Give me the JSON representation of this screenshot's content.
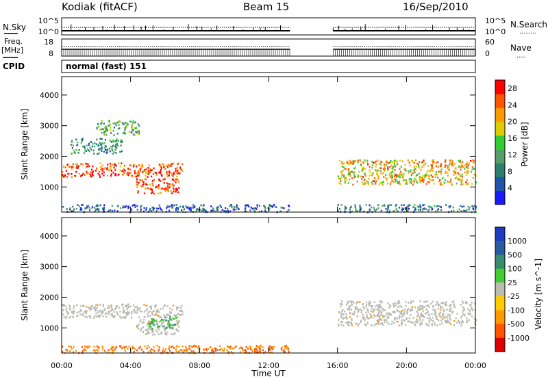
{
  "header": {
    "site": "Kodiak (fitACF)",
    "beam": "Beam 15",
    "date": "16/Sep/2010"
  },
  "noise_panel": {
    "left_label": "N.Sky",
    "left_ticks": [
      "10^5",
      "10^0"
    ],
    "right_label": "N.Search",
    "right_ticks": [
      "10^5",
      "10^0"
    ],
    "right_legend": "........"
  },
  "freq_panel": {
    "left_label_1": "Freq.",
    "left_label_2": "[MHz]",
    "left_ticks": [
      "18",
      "8"
    ],
    "right_label": "Nave",
    "right_ticks": [
      "60",
      "0"
    ],
    "right_legend": "....",
    "cpid_label": "CPID",
    "cpid_text": "normal (fast) 151"
  },
  "colors": {
    "power_scale": [
      "#1a1aff",
      "#2255aa",
      "#2f7f6f",
      "#55a06a",
      "#33cc33",
      "#ddcc00",
      "#ff9900",
      "#ff5500",
      "#ff0000"
    ],
    "velocity_scale": [
      "#dd0000",
      "#ff5500",
      "#ff9900",
      "#ffcc00",
      "#bbbbb0",
      "#44cc33",
      "#3a8a70",
      "#2a5aa0",
      "#1f3dc0"
    ],
    "ground_scatter": "#b8b8b0"
  },
  "chart_data": [
    {
      "type": "heatmap",
      "title": "",
      "xlabel": "Time UT",
      "ylabel": "Slant Range [km]",
      "xlim": [
        "00:00",
        "24:00"
      ],
      "ylim": [
        180,
        4600
      ],
      "x_ticks": [
        "00:00",
        "04:00",
        "08:00",
        "12:00",
        "16:00",
        "20:00",
        "00:00"
      ],
      "y_ticks": [
        1000,
        2000,
        3000,
        4000
      ],
      "colorbar": {
        "label": "Power [dB]",
        "ticks": [
          4,
          8,
          12,
          16,
          20,
          24,
          28
        ],
        "range": [
          0,
          30
        ]
      },
      "data_gap": [
        "13:15",
        "15:45"
      ],
      "regions": [
        {
          "t_start": 0.0,
          "t_end": 7.0,
          "range_start": 1350,
          "range_end": 1800,
          "value_db": 26
        },
        {
          "t_start": 4.3,
          "t_end": 6.8,
          "range_start": 800,
          "range_end": 1300,
          "value_db": 27
        },
        {
          "t_start": 0.5,
          "t_end": 3.5,
          "range_start": 2100,
          "range_end": 2600,
          "value_db": 10
        },
        {
          "t_start": 2.0,
          "t_end": 4.5,
          "range_start": 2700,
          "range_end": 3200,
          "value_db": 12
        },
        {
          "t_start": 0.0,
          "t_end": 13.2,
          "range_start": 200,
          "range_end": 450,
          "value_db": 6
        },
        {
          "t_start": 16.0,
          "t_end": 24.0,
          "range_start": 1100,
          "range_end": 1900,
          "value_db": 20
        },
        {
          "t_start": 16.0,
          "t_end": 24.0,
          "range_start": 200,
          "range_end": 450,
          "value_db": 8
        }
      ]
    },
    {
      "type": "heatmap",
      "title": "",
      "xlabel": "Time UT",
      "ylabel": "Slant Range [km]",
      "xlim": [
        "00:00",
        "24:00"
      ],
      "ylim": [
        180,
        4600
      ],
      "x_ticks": [
        "00:00",
        "04:00",
        "08:00",
        "12:00",
        "16:00",
        "20:00",
        "00:00"
      ],
      "y_ticks": [
        1000,
        2000,
        3000,
        4000
      ],
      "colorbar": {
        "label": "Velocity [m s^-1]",
        "ticks": [
          "1000",
          "500",
          "100",
          "25",
          "-25",
          "-100",
          "-500",
          "-1000"
        ]
      },
      "data_gap": [
        "13:15",
        "15:45"
      ],
      "regions": [
        {
          "t_start": 0.0,
          "t_end": 7.0,
          "range_start": 1350,
          "range_end": 1800,
          "class": "ground scatter"
        },
        {
          "t_start": 4.3,
          "t_end": 6.8,
          "range_start": 800,
          "range_end": 1300,
          "class": "ground scatter"
        },
        {
          "t_start": 5.0,
          "t_end": 6.7,
          "range_start": 1000,
          "range_end": 1400,
          "value": 100
        },
        {
          "t_start": 16.0,
          "t_end": 24.0,
          "range_start": 1100,
          "range_end": 1900,
          "class": "ground scatter"
        },
        {
          "t_start": 0.0,
          "t_end": 13.2,
          "range_start": 200,
          "range_end": 450,
          "value": -100
        }
      ]
    }
  ]
}
